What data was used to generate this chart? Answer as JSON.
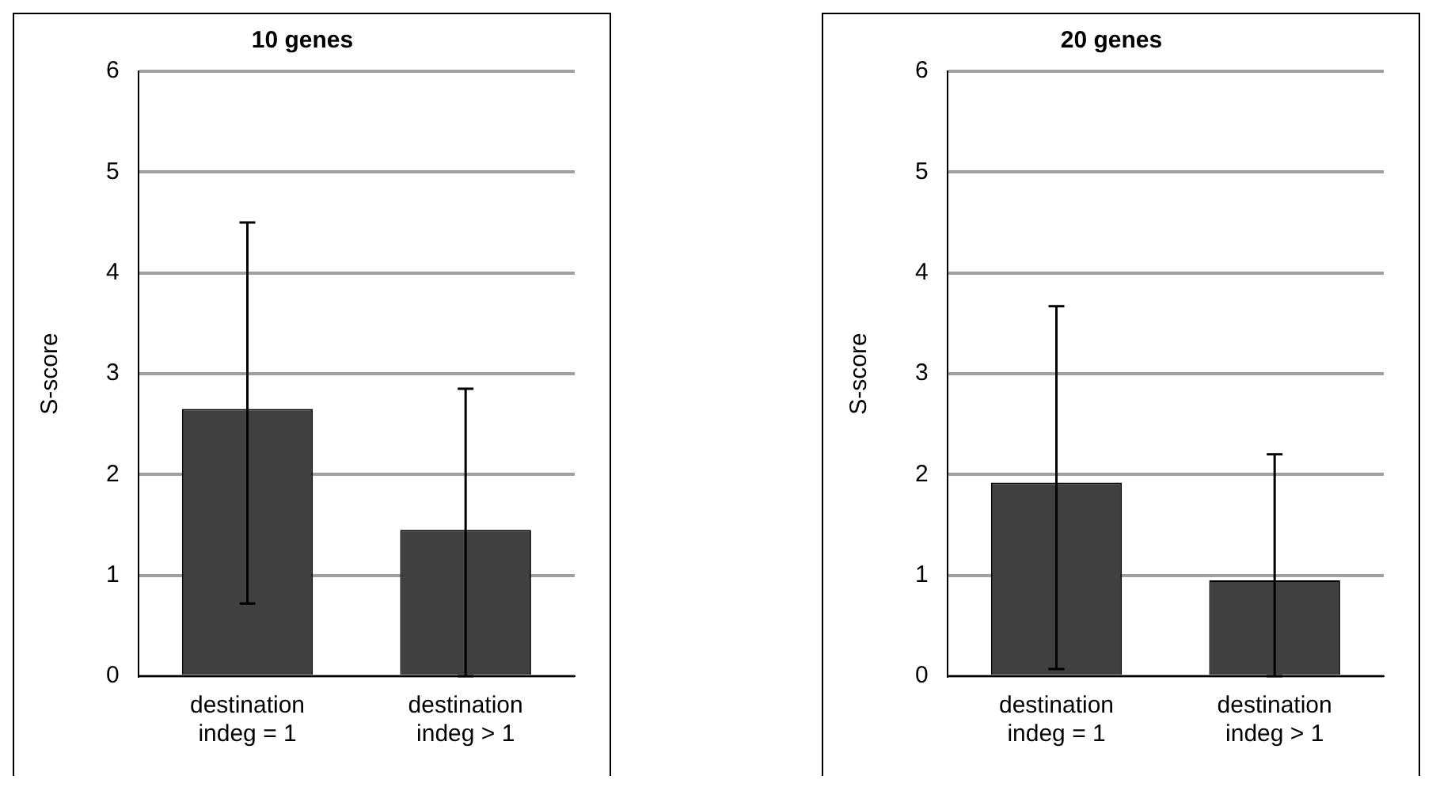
{
  "chart_data": [
    {
      "type": "bar",
      "title": "10 genes",
      "ylabel": "S-score",
      "categories": [
        "destination indeg = 1",
        "destination indeg > 1"
      ],
      "values": [
        2.65,
        1.45
      ],
      "errors": [
        [
          0.72,
          4.5
        ],
        [
          0,
          2.85
        ]
      ],
      "color": "#404040",
      "ylim": [
        0,
        6
      ],
      "yticks": [
        0,
        1,
        2,
        3,
        4,
        5,
        6
      ],
      "grid": "y"
    },
    {
      "type": "bar",
      "title": "20 genes",
      "ylabel": "S-score",
      "categories": [
        "destination indeg = 1",
        "destination indeg > 1"
      ],
      "values": [
        1.92,
        0.95
      ],
      "errors": [
        [
          0.07,
          3.67
        ],
        [
          0,
          2.2
        ]
      ],
      "color": "#404040",
      "ylim": [
        0,
        6
      ],
      "yticks": [
        0,
        1,
        2,
        3,
        4,
        5,
        6
      ],
      "grid": "y"
    }
  ]
}
